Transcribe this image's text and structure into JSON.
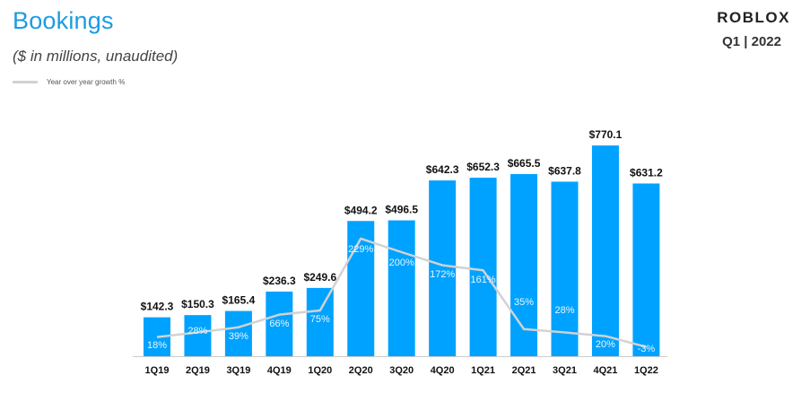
{
  "header": {
    "title": "Bookings",
    "subtitle": "($ in millions,  unaudited)",
    "legend_label": "Year over year growth %",
    "brand": "ROBLOX",
    "period": "Q1 | 2022"
  },
  "colors": {
    "bar": "#00a2ff",
    "line": "#d2d2d2",
    "title": "#1a9ce0"
  },
  "chart_data": {
    "type": "bar",
    "title": "Bookings",
    "subtitle": "($ in millions,  unaudited)",
    "ylabel": "",
    "xlabel": "",
    "ylim": [
      0,
      800
    ],
    "categories": [
      "1Q19",
      "2Q19",
      "3Q19",
      "4Q19",
      "1Q20",
      "2Q20",
      "3Q20",
      "4Q20",
      "1Q21",
      "2Q21",
      "3Q21",
      "4Q21",
      "1Q22"
    ],
    "series": [
      {
        "name": "Bookings",
        "values": [
          142.3,
          150.3,
          165.4,
          236.3,
          249.6,
          494.2,
          496.5,
          642.3,
          652.3,
          665.5,
          637.8,
          770.1,
          631.2
        ],
        "labels": [
          "$142.3",
          "$150.3",
          "$165.4",
          "$236.3",
          "$249.6",
          "$494.2",
          "$496.5",
          "$642.3",
          "$652.3",
          "$665.5",
          "$637.8",
          "$770.1",
          "$631.2"
        ]
      },
      {
        "name": "Year over year growth %",
        "type": "line",
        "values": [
          18,
          28,
          39,
          66,
          75,
          229,
          200,
          172,
          161,
          35,
          28,
          20,
          -3
        ],
        "labels": [
          "18%",
          "28%",
          "39%",
          "66%",
          "75%",
          "229%",
          "200%",
          "172%",
          "161%",
          "35%",
          "28%",
          "20%",
          "-3%"
        ]
      }
    ]
  }
}
